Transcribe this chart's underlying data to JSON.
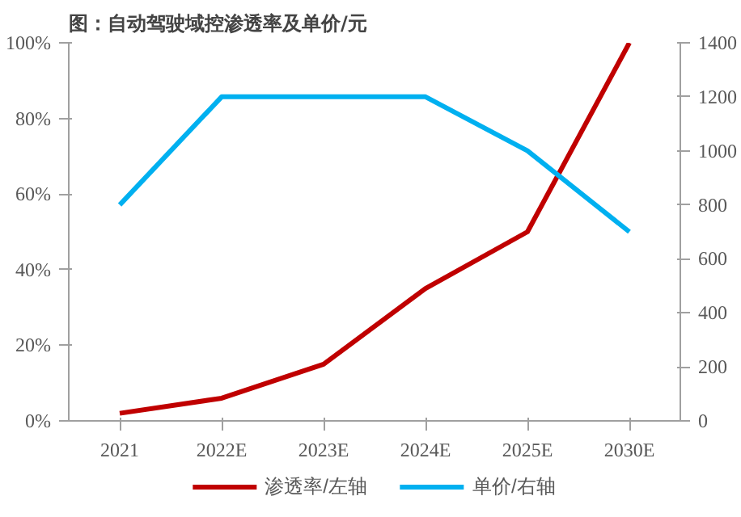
{
  "chart_data": {
    "type": "line",
    "title": "图：自动驾驶域控渗透率及单价/元",
    "categories": [
      "2021",
      "2022E",
      "2023E",
      "2024E",
      "2025E",
      "2030E"
    ],
    "series": [
      {
        "name": "渗透率/左轴",
        "color": "#c00000",
        "values": [
          2,
          6,
          15,
          35,
          50,
          100
        ]
      },
      {
        "name": "单价/右轴",
        "color": "#00b0f0",
        "values": [
          800,
          1200,
          1200,
          1200,
          1000,
          700
        ],
        "axis": "y2"
      }
    ],
    "ylim": [
      0,
      100
    ],
    "yticks": [
      {
        "value": 0,
        "label": "0%"
      },
      {
        "value": 20,
        "label": "20%"
      },
      {
        "value": 40,
        "label": "40%"
      },
      {
        "value": 60,
        "label": "60%"
      },
      {
        "value": 80,
        "label": "80%"
      },
      {
        "value": 100,
        "label": "100%"
      }
    ],
    "y2lim": [
      0,
      1400
    ],
    "y2ticks": [
      0,
      200,
      400,
      600,
      800,
      1000,
      1200,
      1400
    ],
    "grid": false,
    "legend": "bottom",
    "marker": "none",
    "line_style": "solid"
  }
}
